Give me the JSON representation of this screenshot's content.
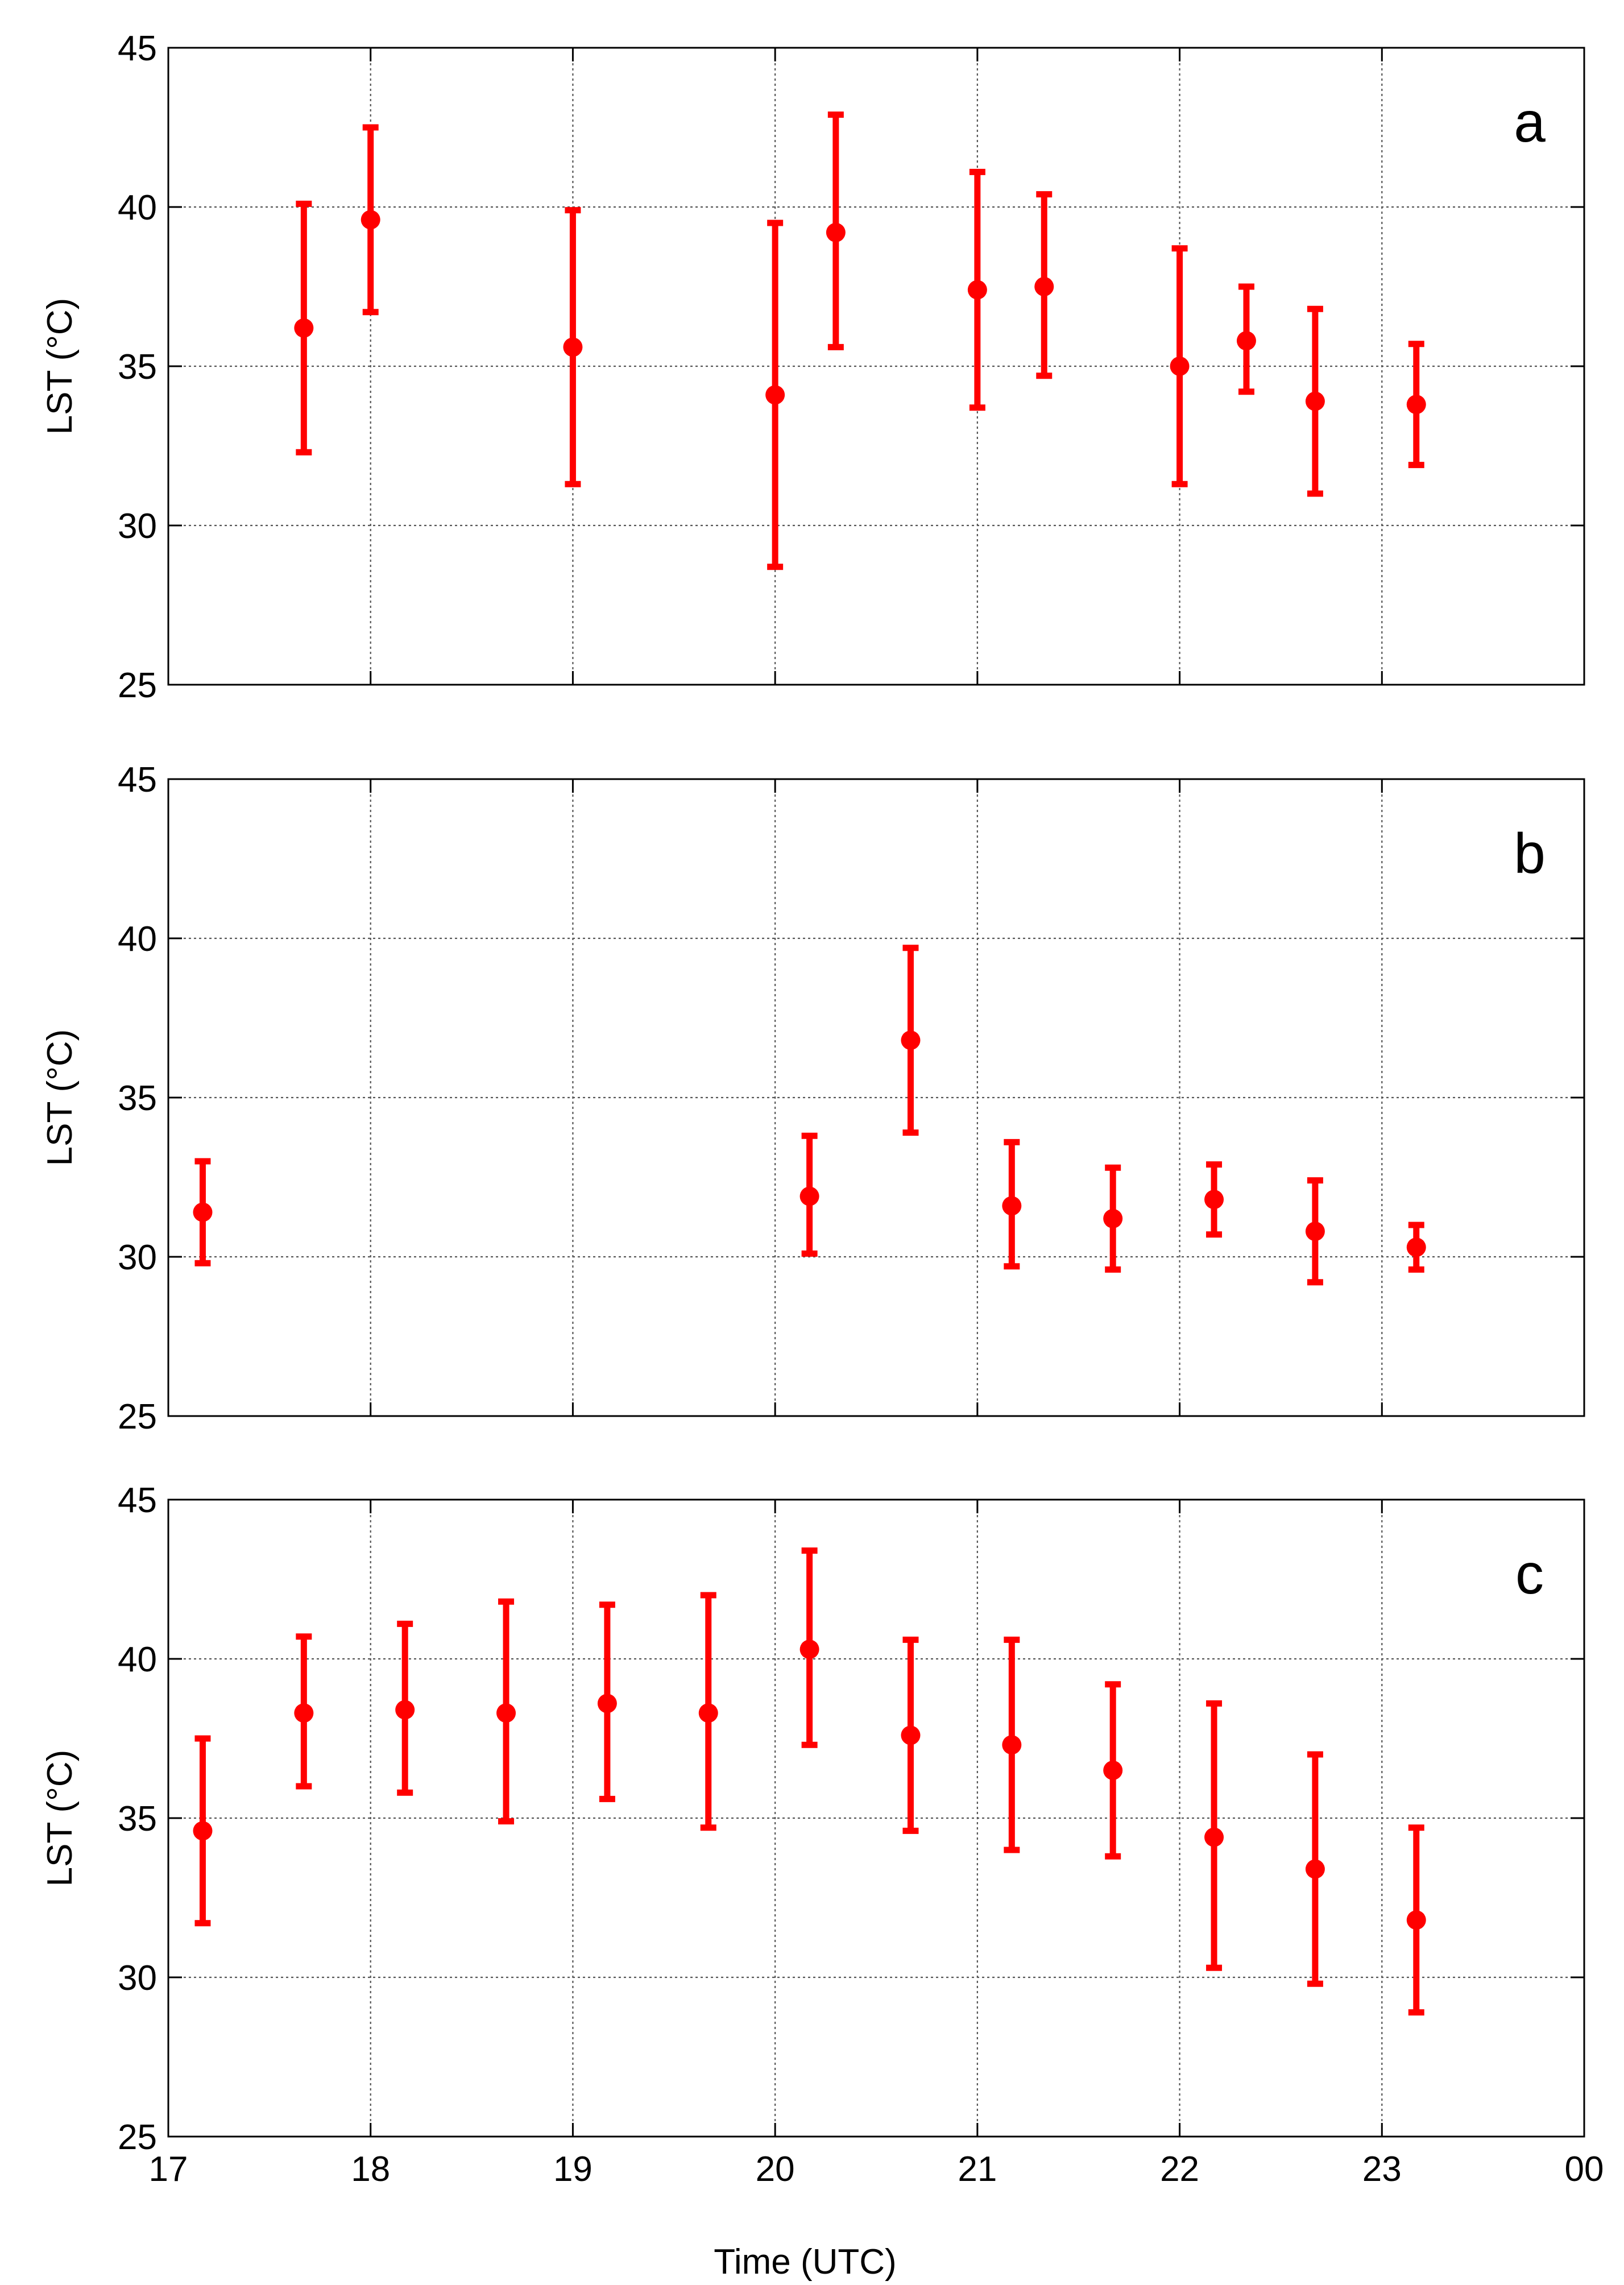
{
  "figure": {
    "xlabel": "Time (UTC)",
    "shared_x_ticks": [
      "17",
      "18",
      "19",
      "20",
      "21",
      "22",
      "23",
      "00"
    ]
  },
  "chart_data": [
    {
      "type": "scatter",
      "panel": "a",
      "ylabel": "LST (°C)",
      "xlim": [
        17,
        24
      ],
      "ylim": [
        25,
        45
      ],
      "x_ticks": [
        17,
        18,
        19,
        20,
        21,
        22,
        23,
        24
      ],
      "y_ticks": [
        25,
        30,
        35,
        40,
        45
      ],
      "grid": true,
      "color": "#ff0000",
      "points": [
        {
          "x": 17.67,
          "y": 36.2,
          "low": 32.3,
          "high": 40.1
        },
        {
          "x": 18.0,
          "y": 39.6,
          "low": 36.7,
          "high": 42.5
        },
        {
          "x": 19.0,
          "y": 35.6,
          "low": 31.3,
          "high": 39.9
        },
        {
          "x": 20.0,
          "y": 34.1,
          "low": 28.7,
          "high": 39.5
        },
        {
          "x": 20.3,
          "y": 39.2,
          "low": 35.6,
          "high": 42.9
        },
        {
          "x": 21.0,
          "y": 37.4,
          "low": 33.7,
          "high": 41.1
        },
        {
          "x": 21.33,
          "y": 37.5,
          "low": 34.7,
          "high": 40.4
        },
        {
          "x": 22.0,
          "y": 35.0,
          "low": 31.3,
          "high": 38.7
        },
        {
          "x": 22.33,
          "y": 35.8,
          "low": 34.2,
          "high": 37.5
        },
        {
          "x": 22.67,
          "y": 33.9,
          "low": 31.0,
          "high": 36.8
        },
        {
          "x": 23.17,
          "y": 33.8,
          "low": 31.9,
          "high": 35.7
        }
      ]
    },
    {
      "type": "scatter",
      "panel": "b",
      "ylabel": "LST (°C)",
      "xlim": [
        17,
        24
      ],
      "ylim": [
        25,
        45
      ],
      "x_ticks": [
        17,
        18,
        19,
        20,
        21,
        22,
        23,
        24
      ],
      "y_ticks": [
        25,
        30,
        35,
        40,
        45
      ],
      "grid": true,
      "color": "#ff0000",
      "points": [
        {
          "x": 17.17,
          "y": 31.4,
          "low": 29.8,
          "high": 33.0
        },
        {
          "x": 20.17,
          "y": 31.9,
          "low": 30.1,
          "high": 33.8
        },
        {
          "x": 20.67,
          "y": 36.8,
          "low": 33.9,
          "high": 39.7
        },
        {
          "x": 21.17,
          "y": 31.6,
          "low": 29.7,
          "high": 33.6
        },
        {
          "x": 21.67,
          "y": 31.2,
          "low": 29.6,
          "high": 32.8
        },
        {
          "x": 22.17,
          "y": 31.8,
          "low": 30.7,
          "high": 32.9
        },
        {
          "x": 22.67,
          "y": 30.8,
          "low": 29.2,
          "high": 32.4
        },
        {
          "x": 23.17,
          "y": 30.3,
          "low": 29.6,
          "high": 31.0
        }
      ]
    },
    {
      "type": "scatter",
      "panel": "c",
      "ylabel": "LST (°C)",
      "xlim": [
        17,
        24
      ],
      "ylim": [
        25,
        45
      ],
      "x_ticks": [
        17,
        18,
        19,
        20,
        21,
        22,
        23,
        24
      ],
      "y_ticks": [
        25,
        30,
        35,
        40,
        45
      ],
      "grid": true,
      "color": "#ff0000",
      "points": [
        {
          "x": 17.17,
          "y": 34.6,
          "low": 31.7,
          "high": 37.5
        },
        {
          "x": 17.67,
          "y": 38.3,
          "low": 36.0,
          "high": 40.7
        },
        {
          "x": 18.17,
          "y": 38.4,
          "low": 35.8,
          "high": 41.1
        },
        {
          "x": 18.67,
          "y": 38.3,
          "low": 34.9,
          "high": 41.8
        },
        {
          "x": 19.17,
          "y": 38.6,
          "low": 35.6,
          "high": 41.7
        },
        {
          "x": 19.67,
          "y": 38.3,
          "low": 34.7,
          "high": 42.0
        },
        {
          "x": 20.17,
          "y": 40.3,
          "low": 37.3,
          "high": 43.4
        },
        {
          "x": 20.67,
          "y": 37.6,
          "low": 34.6,
          "high": 40.6
        },
        {
          "x": 21.17,
          "y": 37.3,
          "low": 34.0,
          "high": 40.6
        },
        {
          "x": 21.67,
          "y": 36.5,
          "low": 33.8,
          "high": 39.2
        },
        {
          "x": 22.17,
          "y": 34.4,
          "low": 30.3,
          "high": 38.6
        },
        {
          "x": 22.67,
          "y": 33.4,
          "low": 29.8,
          "high": 37.0
        },
        {
          "x": 23.17,
          "y": 31.8,
          "low": 28.9,
          "high": 34.7
        }
      ]
    }
  ]
}
